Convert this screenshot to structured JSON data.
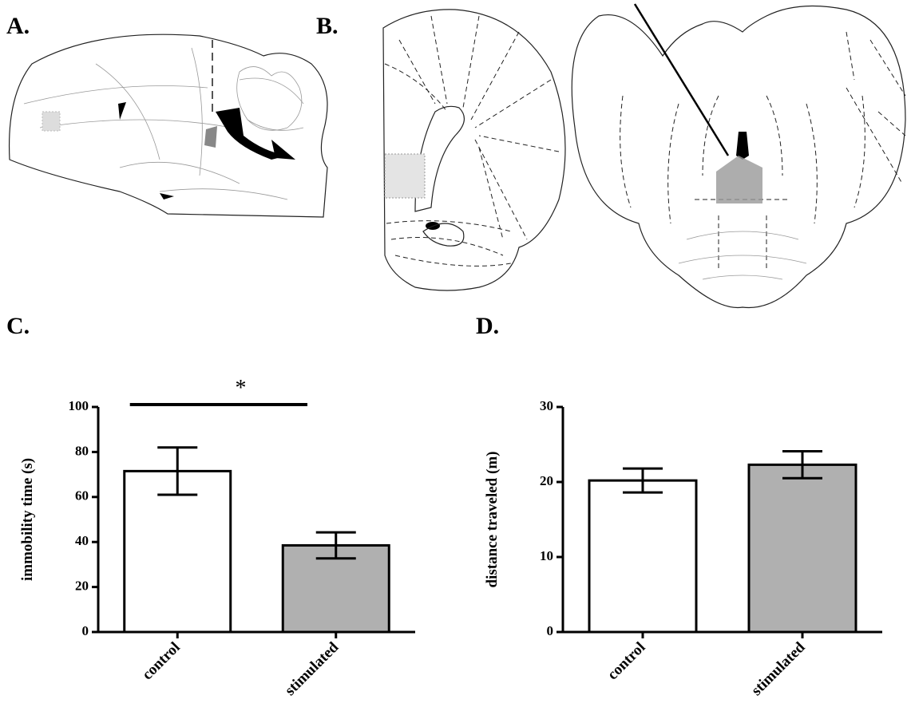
{
  "panel_labels": [
    "A.",
    "B.",
    "C.",
    "D."
  ],
  "chart_data": [
    {
      "type": "bar",
      "y_label": "immobility time (s)",
      "categories": [
        "control",
        "stimulated"
      ],
      "values": [
        71.5,
        38.5
      ],
      "errors": [
        10.5,
        5.8
      ],
      "colors": [
        "#ffffff",
        "#b0b0b0"
      ],
      "ylim": [
        0,
        100
      ],
      "yticks": [
        0,
        20,
        40,
        60,
        80,
        100
      ],
      "annotation": "*"
    },
    {
      "type": "bar",
      "y_label": "distance traveled (m)",
      "categories": [
        "control",
        "stimulated"
      ],
      "values": [
        20.2,
        22.3
      ],
      "errors": [
        1.6,
        1.8
      ],
      "colors": [
        "#ffffff",
        "#b0b0b0"
      ],
      "ylim": [
        0,
        30
      ],
      "yticks": [
        0,
        10,
        20,
        30
      ]
    }
  ]
}
